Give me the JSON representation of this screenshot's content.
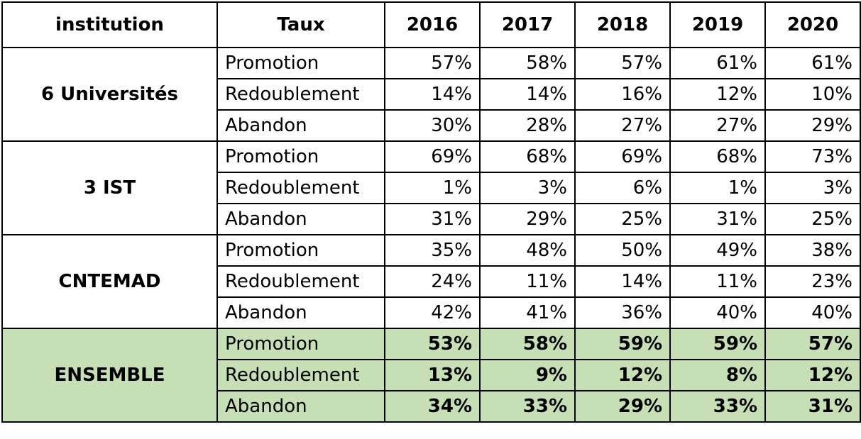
{
  "header": {
    "institution": "institution",
    "taux": "Taux",
    "years": [
      "2016",
      "2017",
      "2018",
      "2019",
      "2020"
    ]
  },
  "groups": [
    {
      "name": "6  Universités",
      "rows": [
        {
          "label": "Promotion",
          "values": [
            "57%",
            "58%",
            "57%",
            "61%",
            "61%"
          ]
        },
        {
          "label": "Redoublement",
          "values": [
            "14%",
            "14%",
            "16%",
            "12%",
            "10%"
          ]
        },
        {
          "label": "Abandon",
          "values": [
            "30%",
            "28%",
            "27%",
            "27%",
            "29%"
          ]
        }
      ]
    },
    {
      "name": "3 IST",
      "rows": [
        {
          "label": "Promotion",
          "values": [
            "69%",
            "68%",
            "69%",
            "68%",
            "73%"
          ]
        },
        {
          "label": "Redoublement",
          "values": [
            "1%",
            "3%",
            "6%",
            "1%",
            "3%"
          ]
        },
        {
          "label": "Abandon",
          "values": [
            "31%",
            "29%",
            "25%",
            "31%",
            "25%"
          ]
        }
      ]
    },
    {
      "name": "CNTEMAD",
      "rows": [
        {
          "label": "Promotion",
          "values": [
            "35%",
            "48%",
            "50%",
            "49%",
            "38%"
          ]
        },
        {
          "label": "Redoublement",
          "values": [
            "24%",
            "11%",
            "14%",
            "11%",
            "23%"
          ]
        },
        {
          "label": "Abandon",
          "values": [
            "42%",
            "41%",
            "36%",
            "40%",
            "40%"
          ]
        }
      ]
    },
    {
      "name": "ENSEMBLE",
      "total": true,
      "rows": [
        {
          "label": "Promotion",
          "values": [
            "53%",
            "58%",
            "59%",
            "59%",
            "57%"
          ]
        },
        {
          "label": "Redoublement",
          "values": [
            "13%",
            "9%",
            "12%",
            "8%",
            "12%"
          ]
        },
        {
          "label": "Abandon",
          "values": [
            "34%",
            "33%",
            "29%",
            "33%",
            "31%"
          ]
        }
      ]
    }
  ],
  "colors": {
    "total_background": "#c6dfb4",
    "border": "#000000"
  }
}
